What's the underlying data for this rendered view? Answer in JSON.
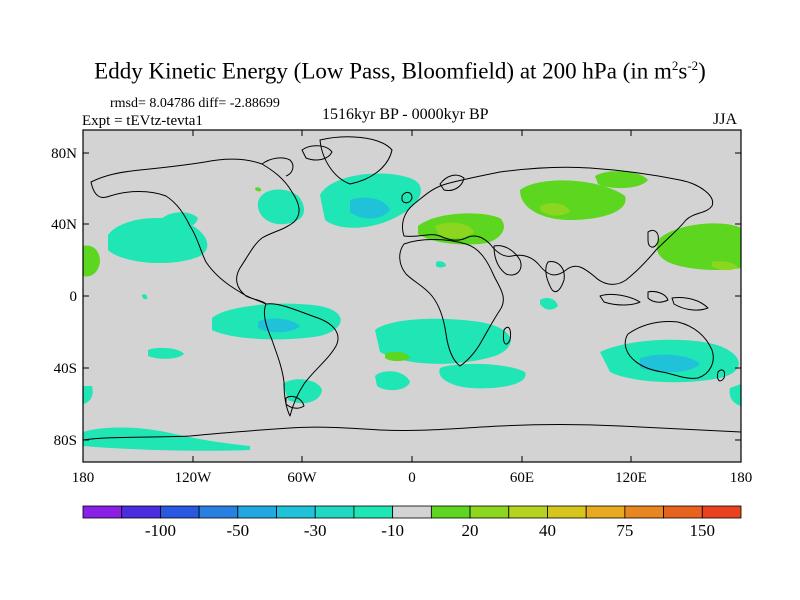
{
  "title": {
    "main": "Eddy Kinetic Energy (Low Pass, Bloomfield) at 200 hPa (in m",
    "sup1": "2",
    "mid": "s",
    "sup2": "-2",
    "end": ")"
  },
  "stats": "rmsd= 8.04786 diff= -2.88699",
  "expt": "Expt = tEVtz-tevta1",
  "period": "1516kyr BP - 0000kyr BP",
  "season": "JJA",
  "map": {
    "lat_labels": [
      "80N",
      "40N",
      "0",
      "40S",
      "80S"
    ],
    "lon_labels": [
      "180",
      "120W",
      "60W",
      "0",
      "60E",
      "120E",
      "180"
    ],
    "background_color": "#d3d3d3"
  },
  "colorbar": {
    "colors": [
      "#8a1fe6",
      "#4a2ee0",
      "#2a58e0",
      "#2a80e0",
      "#22a8e0",
      "#1fc2d8",
      "#1fd9c4",
      "#1fe6b4",
      "#d3d3d3",
      "#5cd61f",
      "#8cd61f",
      "#b4d21f",
      "#d8c41f",
      "#e8aa1f",
      "#e8861f",
      "#e8621f",
      "#e8421f"
    ],
    "labels": [
      "-100",
      "-50",
      "-30",
      "-10",
      "20",
      "40",
      "75",
      "150"
    ]
  }
}
